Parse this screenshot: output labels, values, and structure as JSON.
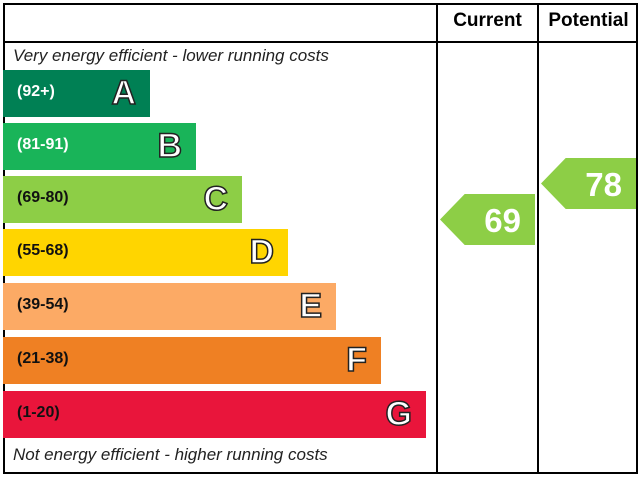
{
  "header": {
    "current": "Current",
    "potential": "Potential"
  },
  "top_note": "Very energy efficient - lower running costs",
  "bottom_note": "Not energy efficient - higher running costs",
  "bands": [
    {
      "range": "(92+)",
      "letter": "A",
      "color": "#008054"
    },
    {
      "range": "(81-91)",
      "letter": "B",
      "color": "#19b459"
    },
    {
      "range": "(69-80)",
      "letter": "C",
      "color": "#8dce46"
    },
    {
      "range": "(55-68)",
      "letter": "D",
      "color": "#ffd500"
    },
    {
      "range": "(39-54)",
      "letter": "E",
      "color": "#fcaa65"
    },
    {
      "range": "(21-38)",
      "letter": "F",
      "color": "#ef8023"
    },
    {
      "range": "(1-20)",
      "letter": "G",
      "color": "#e9153b"
    }
  ],
  "current": {
    "value": 69,
    "color": "#8dce46"
  },
  "potential": {
    "value": 78,
    "color": "#8dce46"
  }
}
